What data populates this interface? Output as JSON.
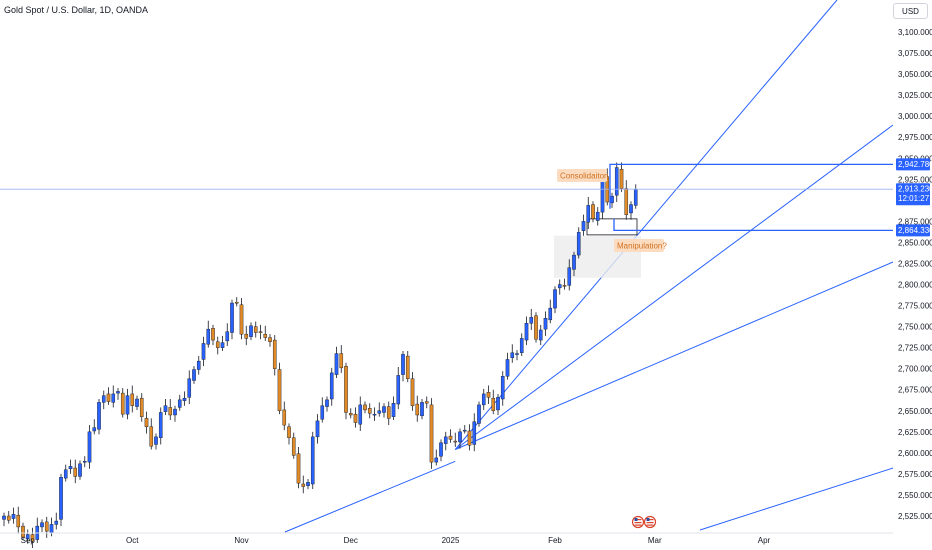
{
  "header": {
    "title": "Gold Spot / U.S. Dollar, 1D, OANDA",
    "currency": "USD"
  },
  "price_labels": {
    "upper": "2,942.780",
    "current": "2,913.230",
    "countdown": "12:01:27",
    "lower": "2,864.330"
  },
  "annotations": {
    "consolidation": "Consolidaiton",
    "manipulation": "Manipulation?"
  },
  "colors": {
    "up": "#2962ff",
    "down": "#e08a28",
    "wick": "#131722",
    "trendline": "#2962ff",
    "annotation_bg": "#fbdcc0",
    "annotation_text": "#d07020"
  },
  "chart_data": {
    "type": "candlestick",
    "title": "Gold Spot / U.S. Dollar, 1D, OANDA",
    "x_tick_labels": [
      "Sep",
      "Oct",
      "Nov",
      "Dec",
      "2025",
      "Feb",
      "Mar",
      "Apr"
    ],
    "y_tick_labels": [
      "2,525.000",
      "2,550.000",
      "2,575.000",
      "2,600.000",
      "2,625.000",
      "2,650.000",
      "2,675.000",
      "2,700.000",
      "2,725.000",
      "2,750.000",
      "2,775.000",
      "2,800.000",
      "2,825.000",
      "2,850.000",
      "2,875.000",
      "2,925.000",
      "2,950.000",
      "2,975.000",
      "3,000.000",
      "3,025.000",
      "3,050.000",
      "3,075.000",
      "3,100.000"
    ],
    "ylim": [
      2513,
      3125
    ],
    "candles_close": [
      2525,
      2520,
      2527,
      2512,
      2500,
      2503,
      2495,
      2513,
      2517,
      2507,
      2515,
      2519,
      2571,
      2580,
      2584,
      2572,
      2587,
      2590,
      2625,
      2630,
      2660,
      2668,
      2661,
      2670,
      2673,
      2646,
      2668,
      2656,
      2664,
      2643,
      2631,
      2608,
      2619,
      2648,
      2656,
      2645,
      2652,
      2663,
      2665,
      2688,
      2699,
      2709,
      2730,
      2747,
      2734,
      2725,
      2731,
      2744,
      2778,
      2778,
      2741,
      2736,
      2751,
      2743,
      2743,
      2737,
      2732,
      2700,
      2650,
      2633,
      2618,
      2597,
      2564,
      2560,
      2565,
      2619,
      2638,
      2656,
      2663,
      2695,
      2718,
      2701,
      2648,
      2645,
      2636,
      2657,
      2651,
      2647,
      2646,
      2650,
      2655,
      2641,
      2659,
      2692,
      2717,
      2688,
      2656,
      2645,
      2660,
      2659,
      2589,
      2594,
      2612,
      2619,
      2616,
      2613,
      2625,
      2627,
      2609,
      2637,
      2657,
      2670,
      2666,
      2650,
      2666,
      2691,
      2711,
      2719,
      2718,
      2736,
      2754,
      2761,
      2735,
      2746,
      2760,
      2772,
      2794,
      2800,
      2798,
      2820,
      2835,
      2862,
      2875,
      2894,
      2878,
      2886,
      2926,
      2898,
      2905,
      2939,
      2914,
      2883,
      2895,
      2913
    ],
    "candle_count": 134,
    "trendlines_from": "2,590.000",
    "horizontal_levels": [
      "2,942.780",
      "2,864.330"
    ],
    "annotations": [
      "Consolidaiton",
      "Manipulation?"
    ]
  }
}
